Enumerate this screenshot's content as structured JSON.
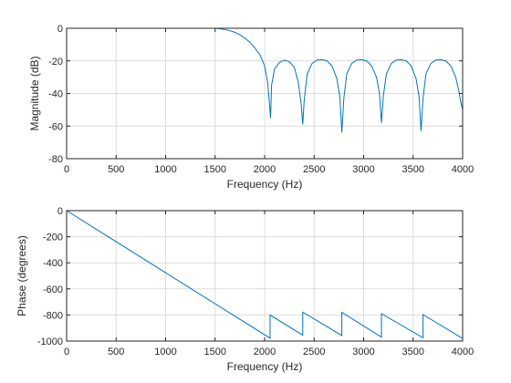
{
  "chart_data": [
    {
      "type": "line",
      "xlabel": "Frequency (Hz)",
      "ylabel": "Magnitude (dB)",
      "xlim": [
        0,
        4000
      ],
      "ylim": [
        -80,
        0
      ],
      "xticks": [
        0,
        500,
        1000,
        1500,
        2000,
        2500,
        3000,
        3500,
        4000
      ],
      "yticks": [
        0,
        -20,
        -40,
        -60,
        -80
      ],
      "grid": true,
      "series": [
        {
          "color": "#0072bd",
          "x": [
            0,
            1500,
            1550,
            1600,
            1650,
            1700,
            1750,
            1800,
            1850,
            1900,
            1950,
            2000,
            2030,
            2050,
            2060,
            2070,
            2100,
            2150,
            2200,
            2250,
            2300,
            2340,
            2370,
            2385,
            2400,
            2430,
            2480,
            2530,
            2580,
            2630,
            2680,
            2730,
            2760,
            2780,
            2800,
            2830,
            2880,
            2930,
            2980,
            3030,
            3080,
            3130,
            3160,
            3180,
            3200,
            3230,
            3280,
            3330,
            3380,
            3430,
            3480,
            3530,
            3560,
            3580,
            3600,
            3630,
            3680,
            3730,
            3780,
            3830,
            3880,
            3930,
            3960,
            3980,
            4000
          ],
          "values": [
            0,
            0,
            -0.3,
            -0.8,
            -1.5,
            -2.5,
            -4,
            -6,
            -8.5,
            -12,
            -16,
            -23,
            -33,
            -47,
            -55,
            -35,
            -25,
            -21,
            -19.5,
            -20.5,
            -24,
            -33,
            -47,
            -59,
            -44,
            -28,
            -21.5,
            -19.5,
            -19.3,
            -20,
            -23,
            -31,
            -42,
            -64,
            -43,
            -28,
            -21.5,
            -19.5,
            -19.3,
            -20,
            -23,
            -30,
            -40,
            -58,
            -41,
            -28,
            -21.5,
            -19.5,
            -19.3,
            -20,
            -23,
            -31,
            -42,
            -63,
            -43,
            -28,
            -21.5,
            -19.5,
            -19.3,
            -20,
            -23,
            -30,
            -38,
            -45,
            -50
          ]
        }
      ]
    },
    {
      "type": "line",
      "xlabel": "Frequency (Hz)",
      "ylabel": "Phase (degrees)",
      "xlim": [
        0,
        4000
      ],
      "ylim": [
        -1000,
        0
      ],
      "xticks": [
        0,
        500,
        1000,
        1500,
        2000,
        2500,
        3000,
        3500,
        4000
      ],
      "yticks": [
        0,
        -200,
        -400,
        -600,
        -800,
        -1000
      ],
      "grid": true,
      "series": [
        {
          "color": "#0072bd",
          "x": [
            0,
            2055,
            2055,
            2385,
            2385,
            2780,
            2780,
            3180,
            3180,
            3600,
            3600,
            4000
          ],
          "values": [
            0,
            -978,
            -800,
            -955,
            -778,
            -958,
            -780,
            -970,
            -790,
            -975,
            -797,
            -980
          ]
        }
      ]
    }
  ]
}
